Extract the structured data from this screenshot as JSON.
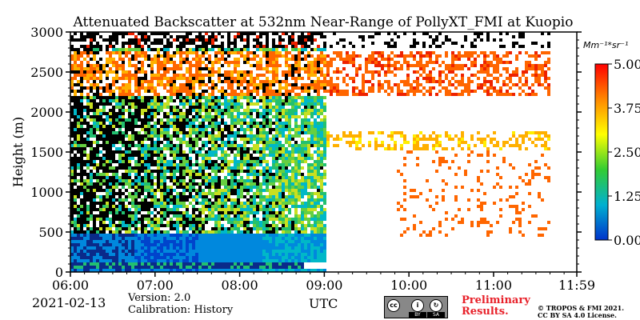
{
  "chart_data": {
    "type": "heatmap",
    "title": "Attenuated Backscatter at 532nm Near-Range of PollyXT_FMI at Kuopio",
    "ylabel": "Height (m)",
    "xlabel": "UTC",
    "x_ticks": [
      "06:00",
      "07:00",
      "08:00",
      "09:00",
      "10:00",
      "11:00",
      "11:59"
    ],
    "x_range": [
      "06:00",
      "11:59"
    ],
    "y_ticks": [
      0,
      500,
      1000,
      1500,
      2000,
      2500,
      3000
    ],
    "ylim": [
      0,
      3000
    ],
    "colorbar": {
      "unit": "Mm⁻¹*sr⁻¹",
      "ticks": [
        "0.00",
        "1.25",
        "2.50",
        "3.75",
        "5.00"
      ],
      "range": [
        0,
        5
      ],
      "colormap": [
        "#0033cc",
        "#00b0d0",
        "#33cc33",
        "#ffff00",
        "#ff8800",
        "#ff0000"
      ]
    },
    "features": {
      "near_surface_layer_m": [
        80,
        120
      ],
      "signal_end_time": "11:40",
      "low_cloud_top_m": 1800,
      "upper_layer_m": [
        2200,
        2800
      ]
    }
  },
  "footer": {
    "date": "2021-02-13",
    "version": "Version: 2.0",
    "calibration": "Calibration: History",
    "preliminary_line1": "Preliminary",
    "preliminary_line2": "Results.",
    "copyright_line1": "© TROPOS & FMI 2021.",
    "copyright_line2": "CC BY SA 4.0 License.",
    "license_badge": [
      "BY",
      "SA"
    ]
  }
}
